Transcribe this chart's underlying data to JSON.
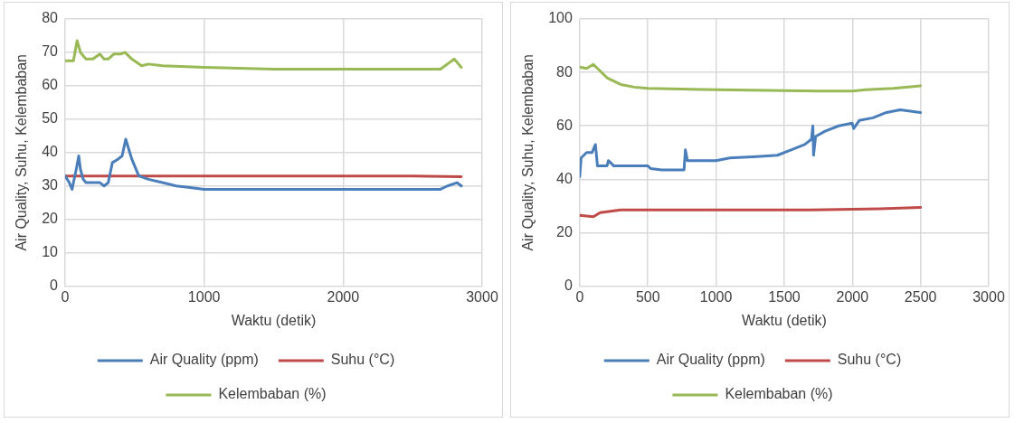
{
  "chart_data": [
    {
      "type": "line",
      "xlabel": "Waktu (detik)",
      "ylabel": "Air Quality, Suhu, Kelembaban",
      "xlim": [
        0,
        3000
      ],
      "xticks": [
        0,
        1000,
        2000,
        3000
      ],
      "ylim": [
        0,
        80
      ],
      "yticks": [
        0,
        10,
        20,
        30,
        40,
        50,
        60,
        70,
        80
      ],
      "grid": true,
      "legend": "bottom",
      "marker": "none",
      "line_style": "solid",
      "series": [
        {
          "name": "Air Quality (ppm)",
          "color": "#4a7ebb",
          "x": [
            0,
            30,
            50,
            60,
            80,
            98,
            110,
            130,
            150,
            250,
            280,
            310,
            340,
            380,
            410,
            436,
            480,
            530,
            600,
            700,
            800,
            900,
            1000,
            1500,
            2000,
            2500,
            2700,
            2750,
            2820,
            2850
          ],
          "values": [
            33,
            31,
            29,
            31,
            35,
            39,
            35,
            32,
            31,
            31,
            30,
            31,
            37,
            38,
            39,
            44,
            38,
            33,
            32,
            31,
            30,
            29.5,
            29,
            29,
            29,
            29,
            29,
            30,
            31,
            30
          ]
        },
        {
          "name": "Suhu (°C)",
          "color": "#be4b48",
          "x": [
            0,
            500,
            1000,
            1500,
            2000,
            2500,
            2850
          ],
          "values": [
            33,
            33,
            33,
            33,
            33,
            33,
            32.8
          ]
        },
        {
          "name": "Kelembaban (%)",
          "color": "#98b954",
          "x": [
            0,
            60,
            86,
            110,
            150,
            200,
            250,
            280,
            310,
            350,
            400,
            430,
            480,
            550,
            600,
            700,
            1000,
            1500,
            2000,
            2500,
            2700,
            2750,
            2800,
            2850
          ],
          "values": [
            67.5,
            67.5,
            73.5,
            70,
            68,
            68,
            69.5,
            68,
            68,
            69.5,
            69.5,
            70,
            68,
            66,
            66.5,
            66,
            65.5,
            65,
            65,
            65,
            65,
            66.5,
            68,
            65.5
          ]
        }
      ]
    },
    {
      "type": "line",
      "xlabel": "Waktu (detik)",
      "ylabel": "Air Quality, Suhu, Kelembaban",
      "xlim": [
        0,
        3000
      ],
      "xticks": [
        0,
        500,
        1000,
        1500,
        2000,
        2500,
        3000
      ],
      "ylim": [
        0,
        100
      ],
      "yticks": [
        0,
        20,
        40,
        60,
        80,
        100
      ],
      "grid": true,
      "legend": "bottom",
      "marker": "none",
      "line_style": "solid",
      "series": [
        {
          "name": "Air Quality (ppm)",
          "color": "#4a7ebb",
          "x": [
            0,
            10,
            50,
            90,
            115,
            130,
            200,
            210,
            250,
            500,
            520,
            600,
            765,
            775,
            790,
            1000,
            1100,
            1300,
            1450,
            1550,
            1650,
            1700,
            1710,
            1715,
            1730,
            1800,
            1900,
            1998,
            2010,
            2050,
            2150,
            2250,
            2350,
            2500
          ],
          "values": [
            41,
            48,
            50,
            50,
            53,
            45,
            45,
            47,
            45,
            45,
            44,
            43.5,
            43.5,
            51,
            47,
            47,
            48,
            48.5,
            49,
            51,
            53,
            55,
            60,
            49,
            56,
            58,
            60,
            61,
            59,
            62,
            63,
            65,
            66,
            65
          ]
        },
        {
          "name": "Suhu (°C)",
          "color": "#be4b48",
          "x": [
            0,
            100,
            150,
            300,
            1000,
            1700,
            2200,
            2500
          ],
          "values": [
            26.5,
            26,
            27.5,
            28.5,
            28.5,
            28.5,
            29,
            29.5
          ]
        },
        {
          "name": "Kelembaban (%)",
          "color": "#98b954",
          "x": [
            0,
            50,
            100,
            200,
            300,
            400,
            500,
            1000,
            1750,
            2000,
            2100,
            2300,
            2500
          ],
          "values": [
            82,
            81.5,
            83,
            78,
            75.5,
            74.5,
            74,
            73.5,
            73,
            73,
            73.5,
            74,
            75
          ]
        }
      ]
    }
  ]
}
